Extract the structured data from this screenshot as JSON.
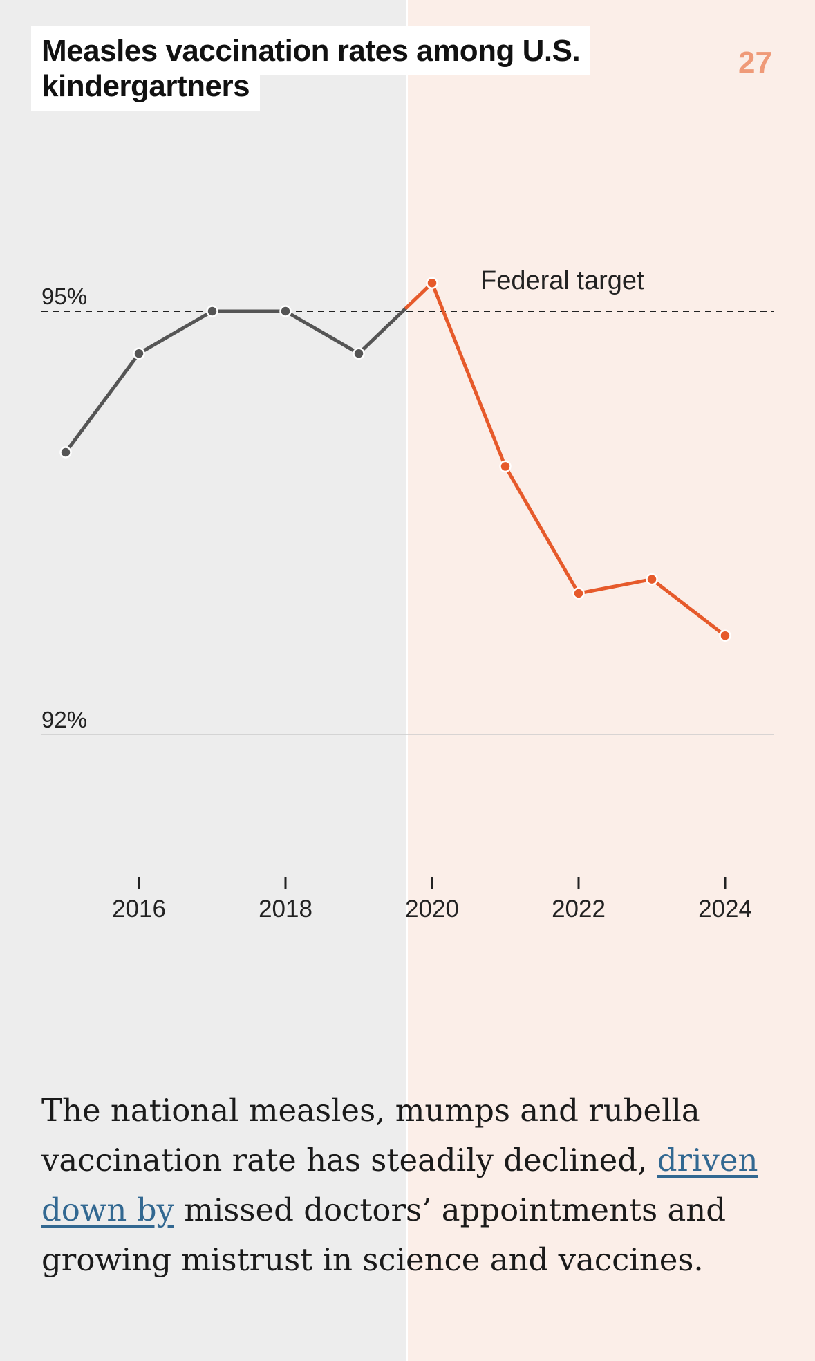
{
  "page": {
    "title": "Measles vaccination rates among U.S. kindergartners",
    "page_number": "27"
  },
  "body": {
    "text_before": "The national measles, mumps and rubella vaccination rate has steadily declined, ",
    "link_text": "driven down by",
    "text_after": " missed doctors’ appointments and growing mistrust in science and vaccines."
  },
  "colors": {
    "before_2020": "#555555",
    "from_2020": "#e65a2b",
    "target_line": "#222222",
    "gridline": "#cccccc",
    "page_number": "#ef9a78",
    "link": "#326891"
  },
  "chart_data": {
    "type": "line",
    "title": "Measles vaccination rates among U.S. kindergartners",
    "xlabel": "",
    "ylabel": "",
    "x": [
      2015,
      2016,
      2017,
      2018,
      2019,
      2020,
      2021,
      2022,
      2023,
      2024
    ],
    "series": [
      {
        "values": [
          94.0,
          94.7,
          95.0,
          95.0,
          94.7,
          95.2,
          93.9,
          93.0,
          93.1,
          92.7
        ]
      }
    ],
    "xlim": [
      2014.8,
      2025.3
    ],
    "ylim": [
      91.5,
      96.5
    ],
    "x_ticks": [
      2016,
      2018,
      2020,
      2022,
      2024
    ],
    "x_tick_labels": [
      "2016",
      "2018",
      "2020",
      "2022",
      "2024"
    ],
    "y_ticks": [
      92,
      95
    ],
    "y_tick_labels": [
      "92%",
      "95%"
    ],
    "reference_line": {
      "y": 95,
      "label": "Federal target",
      "style": "dashed"
    },
    "highlight_from_x": 2019.65,
    "grid": false,
    "legend": "none"
  }
}
